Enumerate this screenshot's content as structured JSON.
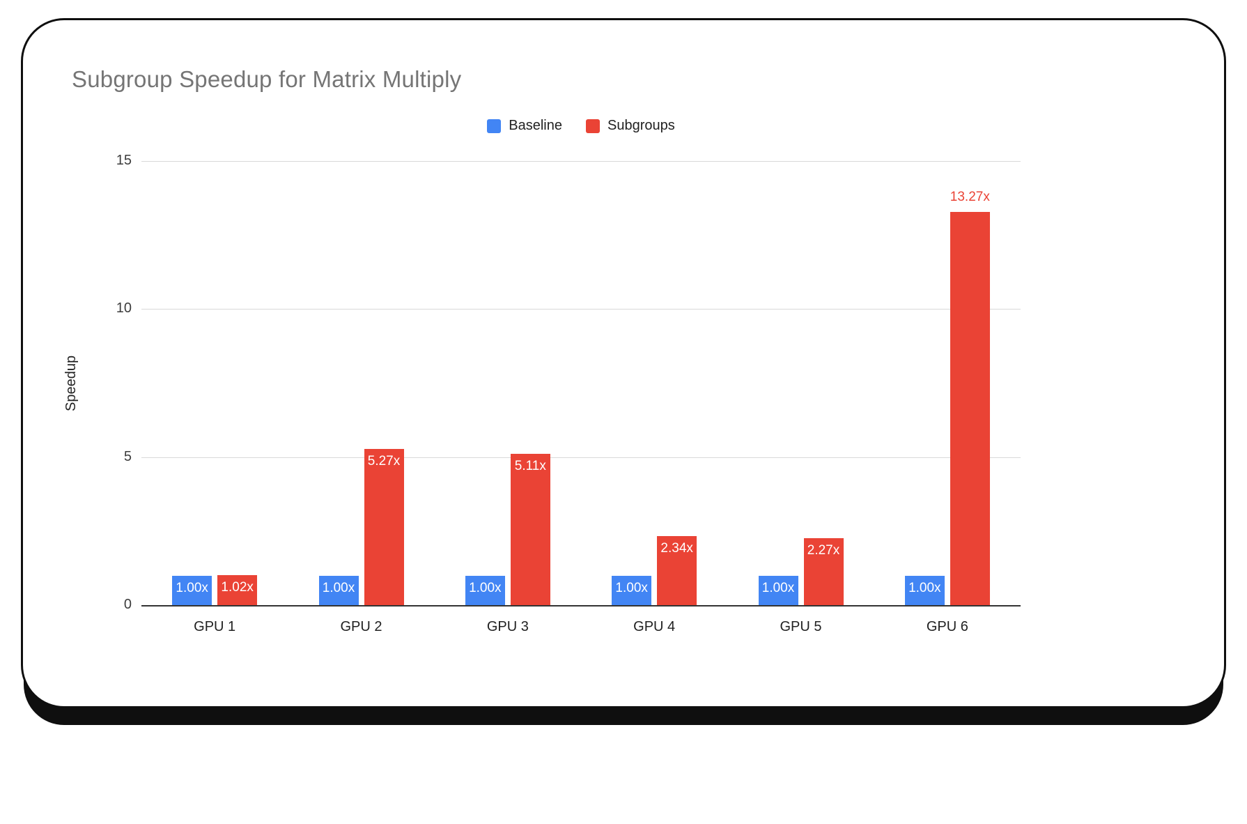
{
  "chart_data": {
    "type": "bar",
    "title": "Subgroup Speedup for Matrix Multiply",
    "xlabel": "",
    "ylabel": "Speedup",
    "categories": [
      "GPU 1",
      "GPU 2",
      "GPU 3",
      "GPU 4",
      "GPU 5",
      "GPU 6"
    ],
    "series": [
      {
        "name": "Baseline",
        "color": "#4285F4",
        "values": [
          1.0,
          1.0,
          1.0,
          1.0,
          1.0,
          1.0
        ],
        "labels": [
          "1.00x",
          "1.00x",
          "1.00x",
          "1.00x",
          "1.00x",
          "1.00x"
        ],
        "label_positions": [
          "inside",
          "inside",
          "inside",
          "inside",
          "inside",
          "inside"
        ]
      },
      {
        "name": "Subgroups",
        "color": "#EA4335",
        "values": [
          1.02,
          5.27,
          5.11,
          2.34,
          2.27,
          13.27
        ],
        "labels": [
          "1.02x",
          "5.27x",
          "5.11x",
          "2.34x",
          "2.27x",
          "13.27x"
        ],
        "label_positions": [
          "inside",
          "inside",
          "inside",
          "inside",
          "inside",
          "above"
        ]
      }
    ],
    "ylim": [
      0,
      15
    ],
    "yticks": [
      0,
      5,
      10,
      15
    ],
    "grid": "horizontal",
    "legend_position": "top-center",
    "label_color_inside": "#ffffff",
    "gridline_color": "#d9d9d9",
    "axis_line_color": "#333333",
    "title_color": "#757575"
  }
}
